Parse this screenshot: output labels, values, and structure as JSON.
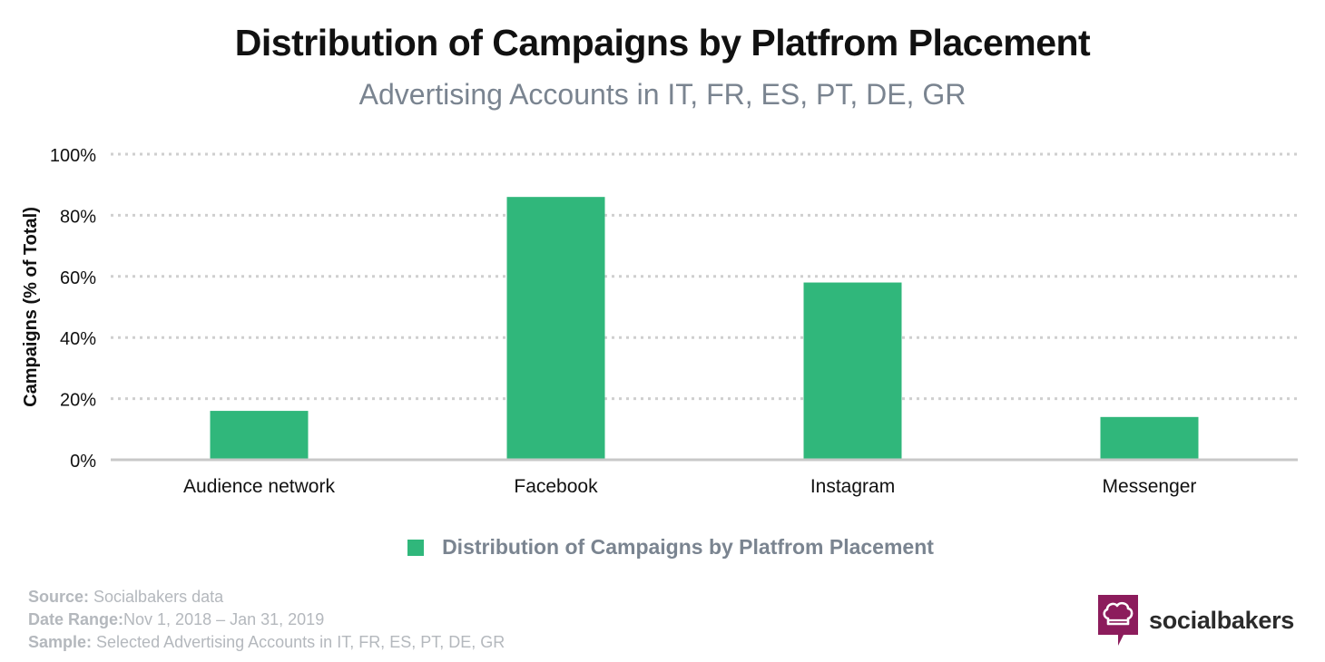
{
  "chart_data": {
    "type": "bar",
    "title": "Distribution of Campaigns by Platfrom Placement",
    "subtitle": "Advertising Accounts in IT, FR, ES, PT, DE, GR",
    "ylabel": "Campaigns (% of Total)",
    "xlabel": "",
    "ylim": [
      0,
      100
    ],
    "yticks": [
      "0%",
      "20%",
      "40%",
      "60%",
      "80%",
      "100%"
    ],
    "ytick_values": [
      0,
      20,
      40,
      60,
      80,
      100
    ],
    "grid": true,
    "legend_position": "bottom-center",
    "categories": [
      "Audience network",
      "Facebook",
      "Instagram",
      "Messenger"
    ],
    "series": [
      {
        "name": "Distribution of Campaigns by Platfrom Placement",
        "values": [
          16,
          86,
          58,
          14
        ],
        "color": "#30b77b"
      }
    ]
  },
  "footer": {
    "source_label": "Source:",
    "source_value": " Socialbakers data",
    "date_label": "Date Range:",
    "date_value": "Nov 1, 2018  – Jan 31, 2019",
    "sample_label": "Sample:",
    "sample_value": " Selected Advertising Accounts in IT, FR, ES, PT, DE, GR"
  },
  "logo": {
    "text": "socialbakers",
    "icon": "chef-hat-speech-bubble-icon",
    "color": "#8c1c5c"
  }
}
